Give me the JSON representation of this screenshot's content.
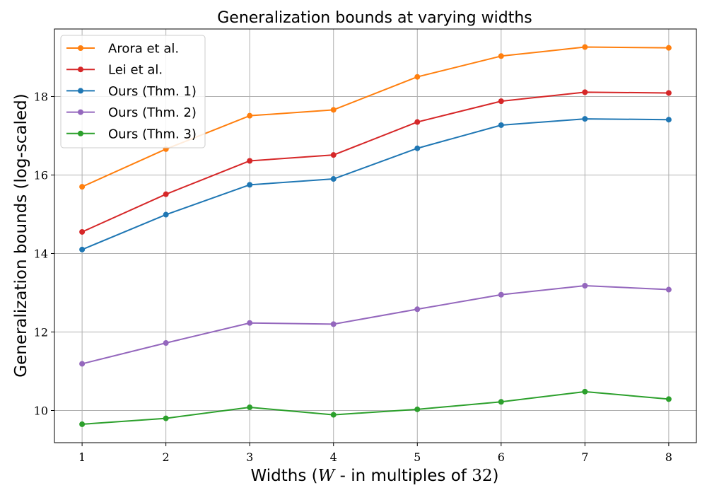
{
  "chart_data": {
    "type": "line",
    "title": "Generalization bounds at varying widths",
    "xlabel": "Widths ($W$ - in multiples of $32$)",
    "ylabel": "Generalization bounds (log-scaled)",
    "x": [
      1,
      2,
      3,
      4,
      5,
      6,
      7,
      8
    ],
    "xlim": [
      0.67,
      8.33
    ],
    "ylim": [
      9.18,
      19.72
    ],
    "xticks": [
      1,
      2,
      3,
      4,
      5,
      6,
      7,
      8
    ],
    "yticks": [
      10,
      12,
      14,
      16,
      18
    ],
    "grid": true,
    "legend_position": "upper-left",
    "series": [
      {
        "name": "Arora et al.",
        "color": "#ff7f0e",
        "values": [
          15.7,
          16.66,
          17.51,
          17.66,
          18.5,
          19.03,
          19.26,
          19.24
        ]
      },
      {
        "name": "Lei et al.",
        "color": "#d62728",
        "values": [
          14.55,
          15.51,
          16.36,
          16.51,
          17.35,
          17.88,
          18.11,
          18.09
        ]
      },
      {
        "name": "Ours (Thm. 1)",
        "color": "#1f77b4",
        "values": [
          14.1,
          14.99,
          15.75,
          15.9,
          16.68,
          17.27,
          17.43,
          17.41
        ]
      },
      {
        "name": "Ours (Thm. 2)",
        "color": "#9467bd",
        "values": [
          11.19,
          11.72,
          12.23,
          12.2,
          12.58,
          12.95,
          13.18,
          13.08
        ]
      },
      {
        "name": "Ours (Thm. 3)",
        "color": "#2ca02c",
        "values": [
          9.65,
          9.8,
          10.08,
          9.89,
          10.03,
          10.22,
          10.48,
          10.29
        ]
      }
    ]
  }
}
